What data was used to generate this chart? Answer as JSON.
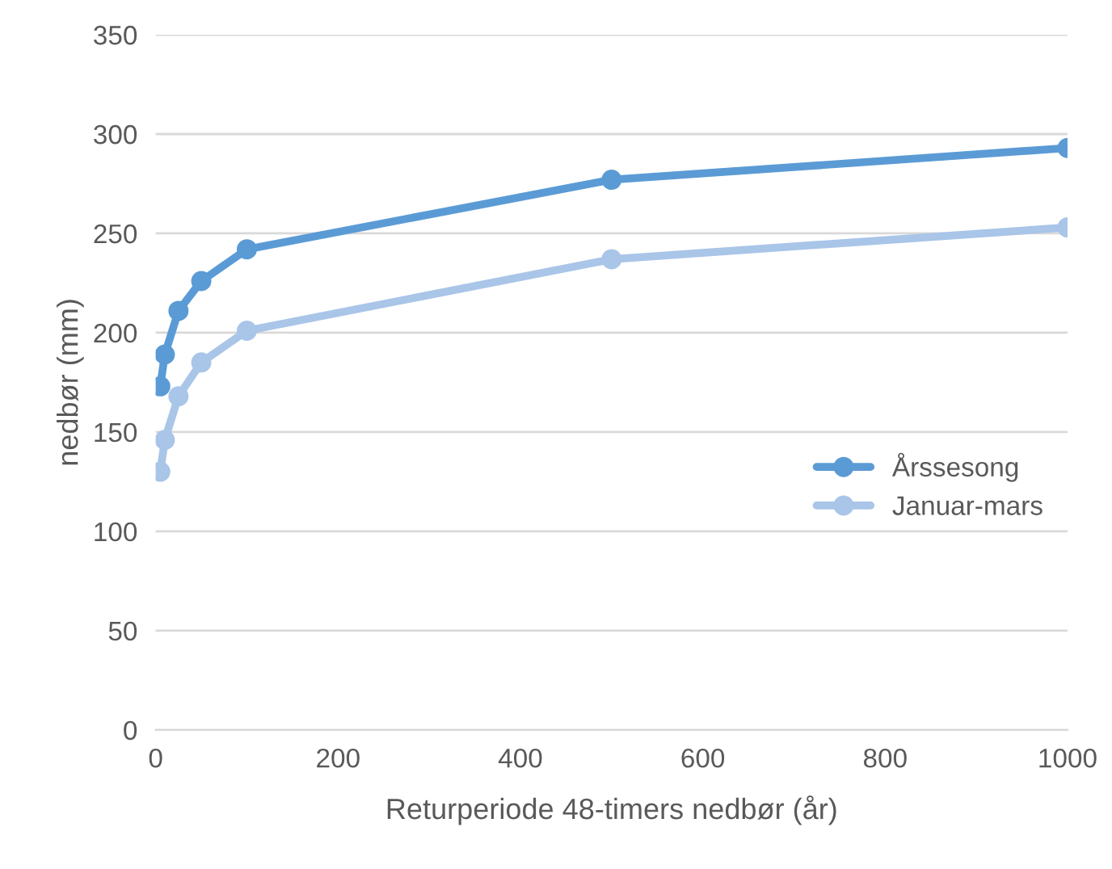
{
  "chart_data": {
    "type": "line",
    "xlabel": "Returperiode 48-timers nedbør (år)",
    "ylabel": "nedbør (mm)",
    "x": [
      5,
      10,
      25,
      50,
      100,
      500,
      1000
    ],
    "series": [
      {
        "name": "Årssesong",
        "color": "#5b9bd5",
        "values": [
          173,
          189,
          211,
          226,
          242,
          277,
          293
        ]
      },
      {
        "name": "Januar-mars",
        "color": "#a9c5e8",
        "values": [
          130,
          146,
          168,
          185,
          201,
          237,
          253
        ]
      }
    ],
    "xlim": [
      0,
      1000
    ],
    "xticks": [
      0,
      200,
      400,
      600,
      800,
      1000
    ],
    "ylim": [
      0,
      350
    ],
    "yticks": [
      0,
      50,
      100,
      150,
      200,
      250,
      300,
      350
    ],
    "grid": "y",
    "legend": "right",
    "marker": "circle",
    "line_style": "solid"
  }
}
